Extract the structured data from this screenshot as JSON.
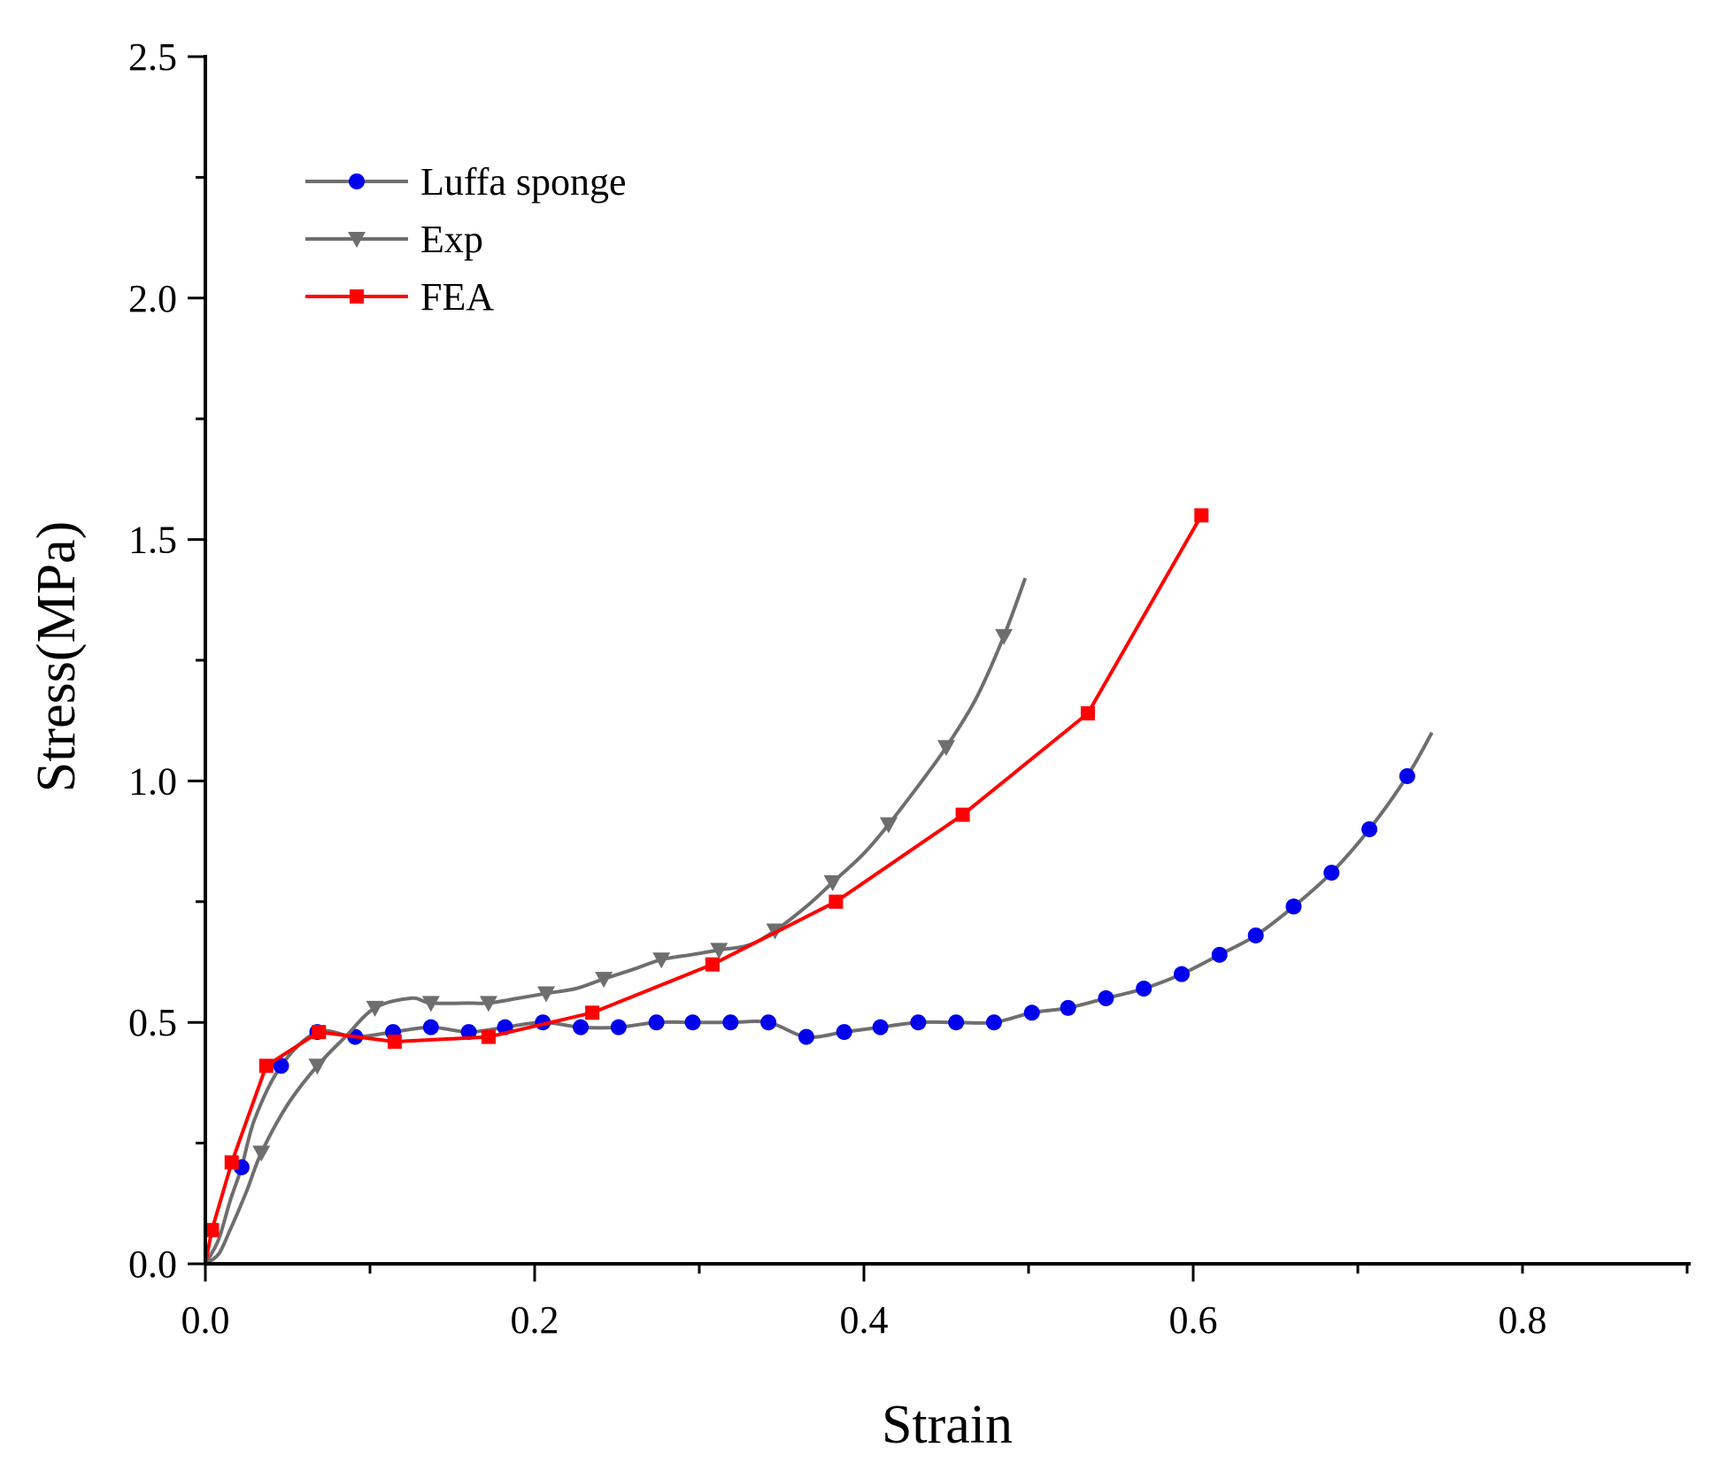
{
  "chart_data": {
    "type": "line",
    "title": "",
    "xlabel": "Strain",
    "ylabel": "Stress(MPa)",
    "xlim": [
      0,
      0.9
    ],
    "ylim": [
      0,
      2.5
    ],
    "xticks": [
      0.0,
      0.2,
      0.4,
      0.6,
      0.8
    ],
    "xtick_labels": [
      "0.0",
      "0.2",
      "0.4",
      "0.6",
      "0.8"
    ],
    "yticks": [
      0.0,
      0.5,
      1.0,
      1.5,
      2.0,
      2.5
    ],
    "ytick_labels": [
      "0.0",
      "0.5",
      "1.0",
      "1.5",
      "2.0",
      "2.5"
    ],
    "legend_position": "top-left",
    "grid": false,
    "series": [
      {
        "name": "Luffa sponge",
        "line_color": "#6e6e6e",
        "marker_color": "#0000ee",
        "marker": "circle",
        "x": [
          0.0,
          0.008,
          0.015,
          0.022,
          0.03,
          0.046,
          0.068,
          0.091,
          0.114,
          0.137,
          0.16,
          0.182,
          0.205,
          0.228,
          0.251,
          0.274,
          0.296,
          0.319,
          0.342,
          0.365,
          0.388,
          0.41,
          0.433,
          0.456,
          0.479,
          0.502,
          0.524,
          0.547,
          0.57,
          0.593,
          0.616,
          0.638,
          0.661,
          0.684,
          0.707,
          0.73,
          0.745
        ],
        "y": [
          0.0,
          0.05,
          0.13,
          0.2,
          0.3,
          0.41,
          0.48,
          0.47,
          0.48,
          0.49,
          0.48,
          0.49,
          0.5,
          0.49,
          0.49,
          0.5,
          0.5,
          0.5,
          0.5,
          0.47,
          0.48,
          0.49,
          0.5,
          0.5,
          0.5,
          0.52,
          0.53,
          0.55,
          0.57,
          0.6,
          0.64,
          0.68,
          0.74,
          0.81,
          0.9,
          1.01,
          1.1
        ],
        "marker_x": [
          0.022,
          0.046,
          0.068,
          0.091,
          0.114,
          0.137,
          0.16,
          0.182,
          0.205,
          0.228,
          0.251,
          0.274,
          0.296,
          0.319,
          0.342,
          0.365,
          0.388,
          0.41,
          0.433,
          0.456,
          0.479,
          0.502,
          0.524,
          0.547,
          0.57,
          0.593,
          0.616,
          0.638,
          0.661,
          0.684,
          0.707,
          0.73
        ],
        "marker_y": [
          0.2,
          0.41,
          0.48,
          0.47,
          0.48,
          0.49,
          0.48,
          0.49,
          0.5,
          0.49,
          0.49,
          0.5,
          0.5,
          0.5,
          0.5,
          0.47,
          0.48,
          0.49,
          0.5,
          0.5,
          0.5,
          0.52,
          0.53,
          0.55,
          0.57,
          0.6,
          0.64,
          0.68,
          0.74,
          0.81,
          0.9,
          1.01
        ]
      },
      {
        "name": "Exp",
        "line_color": "#6e6e6e",
        "marker_color": "#6e6e6e",
        "marker": "triangle-down",
        "x": [
          0.0,
          0.008,
          0.015,
          0.025,
          0.034,
          0.05,
          0.068,
          0.085,
          0.103,
          0.125,
          0.137,
          0.16,
          0.172,
          0.19,
          0.207,
          0.225,
          0.242,
          0.26,
          0.277,
          0.295,
          0.312,
          0.33,
          0.346,
          0.365,
          0.381,
          0.4,
          0.415,
          0.433,
          0.45,
          0.468,
          0.485,
          0.498
        ],
        "y": [
          0.0,
          0.02,
          0.07,
          0.15,
          0.23,
          0.33,
          0.41,
          0.47,
          0.53,
          0.55,
          0.54,
          0.54,
          0.54,
          0.55,
          0.56,
          0.57,
          0.59,
          0.61,
          0.63,
          0.64,
          0.65,
          0.66,
          0.69,
          0.74,
          0.79,
          0.85,
          0.91,
          0.99,
          1.07,
          1.17,
          1.3,
          1.42
        ],
        "marker_x": [
          0.034,
          0.068,
          0.103,
          0.137,
          0.172,
          0.207,
          0.242,
          0.277,
          0.312,
          0.346,
          0.381,
          0.415,
          0.45,
          0.485
        ],
        "marker_y": [
          0.23,
          0.41,
          0.53,
          0.54,
          0.54,
          0.56,
          0.59,
          0.63,
          0.65,
          0.69,
          0.79,
          0.91,
          1.07,
          1.3
        ]
      },
      {
        "name": "FEA",
        "line_color": "#ff0000",
        "marker_color": "#ff0000",
        "marker": "square",
        "x": [
          0.0,
          0.004,
          0.016,
          0.037,
          0.069,
          0.115,
          0.172,
          0.235,
          0.308,
          0.383,
          0.46,
          0.536,
          0.605
        ],
        "y": [
          0.0,
          0.07,
          0.21,
          0.41,
          0.48,
          0.46,
          0.47,
          0.52,
          0.62,
          0.75,
          0.93,
          1.14,
          1.55
        ],
        "marker_x": [
          0.004,
          0.016,
          0.037,
          0.069,
          0.115,
          0.172,
          0.235,
          0.308,
          0.383,
          0.46,
          0.536,
          0.605
        ],
        "marker_y": [
          0.07,
          0.21,
          0.41,
          0.48,
          0.46,
          0.47,
          0.52,
          0.62,
          0.75,
          0.93,
          1.14,
          1.55
        ]
      }
    ]
  }
}
